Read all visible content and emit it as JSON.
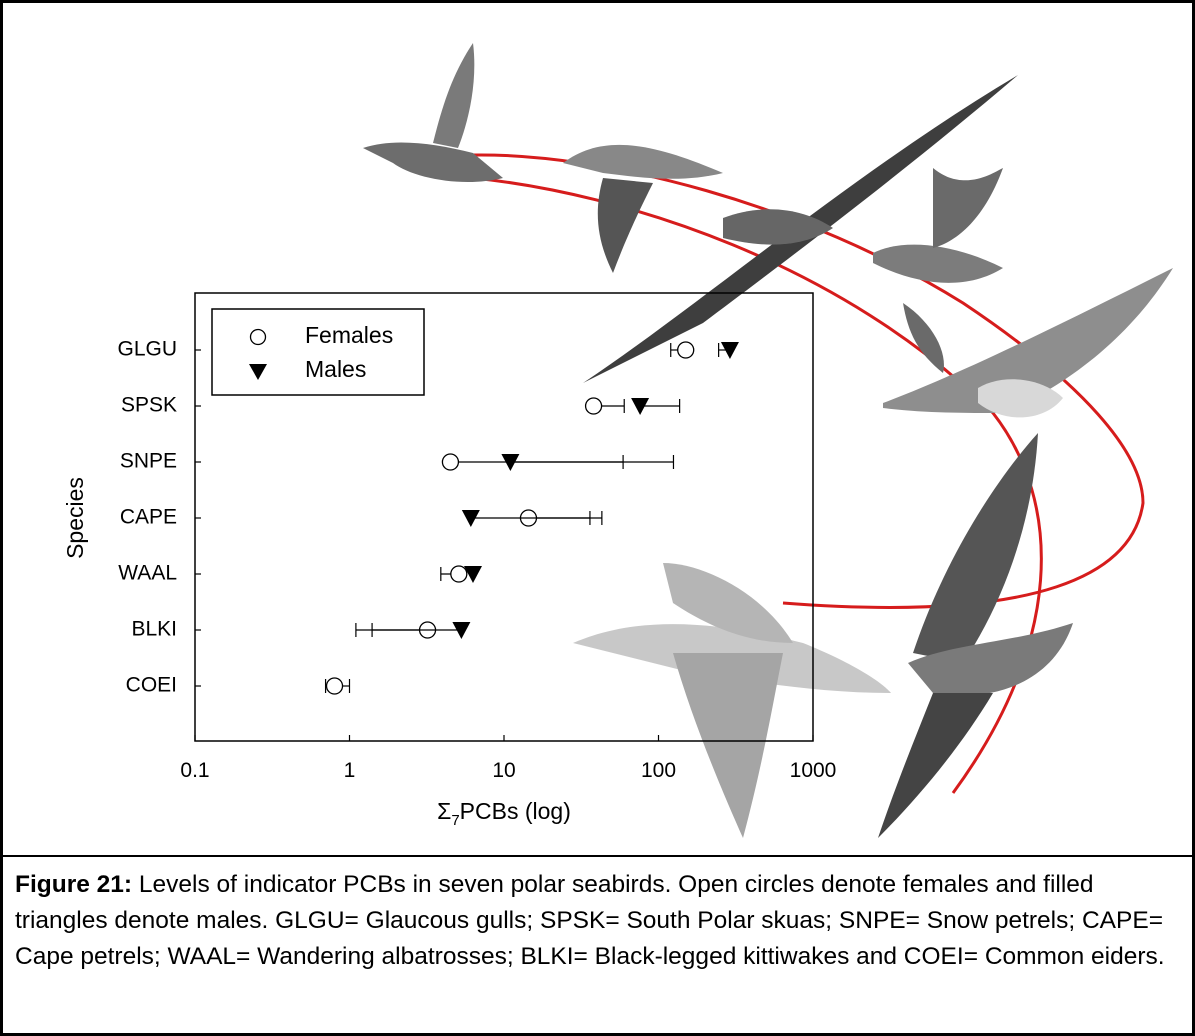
{
  "chart_data": {
    "type": "dot",
    "y_label": "Species",
    "x_label": {
      "symbol": "Σ",
      "subscript": "7",
      "text": "PCBs (log)"
    },
    "categories": [
      "GLGU",
      "SPSK",
      "SNPE",
      "CAPE",
      "WAAL",
      "BLKI",
      "COEI"
    ],
    "xscale": "log",
    "xlim": [
      0.1,
      1000
    ],
    "xticks": [
      0.1,
      1,
      10,
      100,
      1000
    ],
    "legend": "upper left",
    "series": [
      {
        "name": "Females",
        "marker": "circle",
        "color": "#ffffff",
        "values": [
          150,
          38,
          4.5,
          14.4,
          5.1,
          3.2,
          0.8
        ],
        "lower": [
          120,
          null,
          null,
          null,
          3.9,
          1.4,
          0.7
        ],
        "upper": [
          null,
          60,
          59,
          36,
          null,
          null,
          1.0
        ]
      },
      {
        "name": "Males",
        "marker": "triangle",
        "color": "#000000",
        "values": [
          290,
          76,
          11,
          6.1,
          6.3,
          5.3,
          null
        ],
        "lower": [
          245,
          null,
          null,
          null,
          null,
          1.1,
          null
        ],
        "upper": [
          null,
          137,
          125,
          43,
          null,
          null,
          null
        ]
      }
    ]
  },
  "caption": {
    "label": "Figure 21:",
    "text": "Levels of indicator PCBs in seven polar seabirds. Open circles denote females and filled triangles denote males. GLGU= Glaucous gulls; SPSK= South Polar skuas; SNPE= Snow petrels; CAPE= Cape petrels; WAAL= Wandering albatrosses; BLKI= Black-legged kittiwakes and COEI= Common eiders."
  }
}
